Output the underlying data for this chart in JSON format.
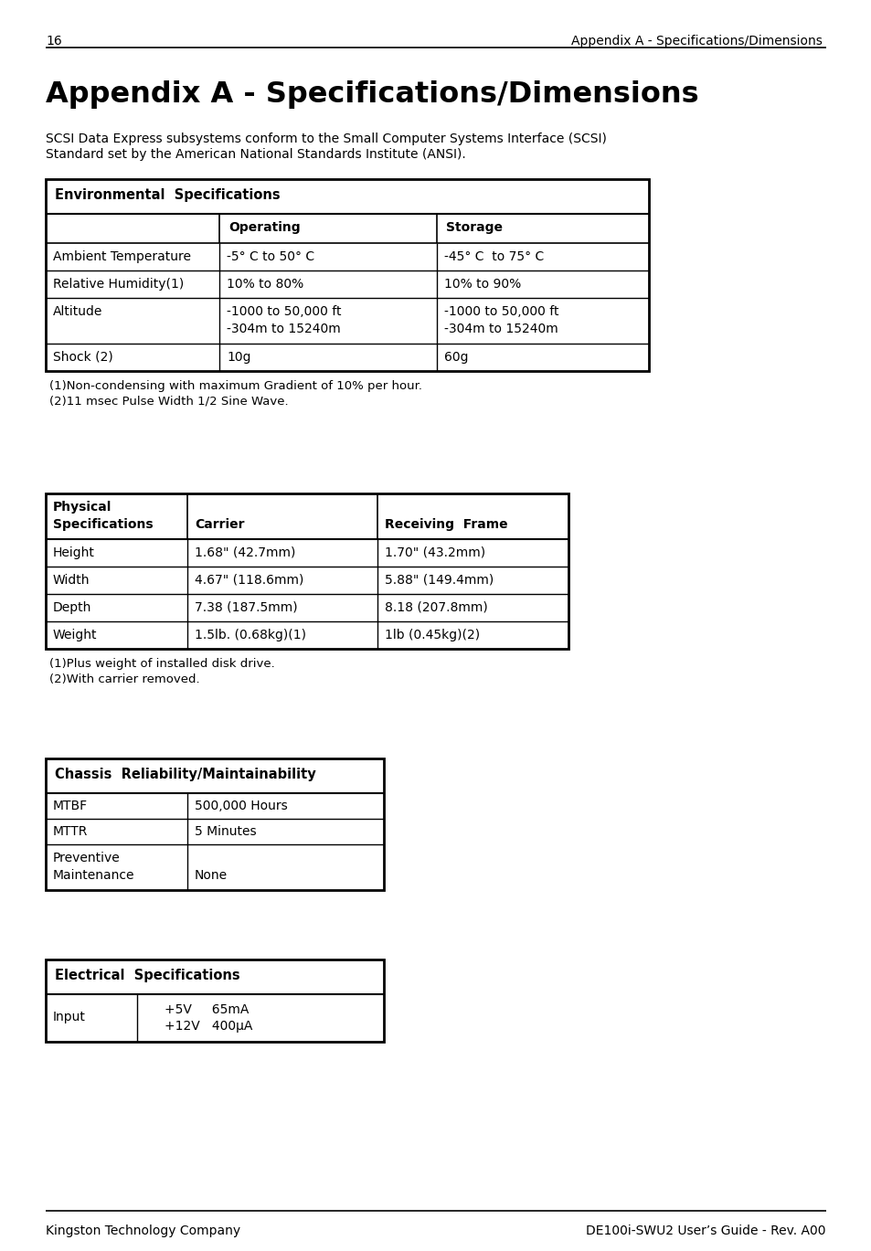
{
  "page_number": "16",
  "header_right": "Appendix A - Specifications/Dimensions",
  "title": "Appendix A - Specifications/Dimensions",
  "intro_line1": "SCSI Data Express subsystems conform to the Small Computer Systems Interface (SCSI)",
  "intro_line2": "Standard set by the American National Standards Institute (ANSI).",
  "footer_left": "Kingston Technology Company",
  "footer_right": "DE100i-SWU2 User’s Guide - Rev. A00",
  "env_header": "Environmental  Specifications",
  "env_col2": "Operating",
  "env_col3": "Storage",
  "env_rows": [
    [
      "Ambient Temperature",
      "-5° C to 50° C",
      "-45° C  to 75° C"
    ],
    [
      "Relative Humidity(1)",
      "10% to 80%",
      "10% to 90%"
    ],
    [
      "Altitude",
      "-1000 to 50,000 ft\n-304m to 15240m",
      "-1000 to 50,000 ft\n-304m to 15240m"
    ],
    [
      "Shock (2)",
      "10g",
      "60g"
    ]
  ],
  "env_fn1": "(1)Non-condensing with maximum Gradient of 10% per hour.",
  "env_fn2": "(2)11 msec Pulse Width 1/2 Sine Wave.",
  "phys_col1a": "Physical",
  "phys_col1b": "Specifications",
  "phys_col2": "Carrier",
  "phys_col3": "Receiving  Frame",
  "phys_rows": [
    [
      "Height",
      "1.68\" (42.7mm)",
      "1.70\" (43.2mm)"
    ],
    [
      "Width",
      "4.67\" (118.6mm)",
      "5.88\" (149.4mm)"
    ],
    [
      "Depth",
      "7.38 (187.5mm)",
      "8.18 (207.8mm)"
    ],
    [
      "Weight",
      "1.5lb. (0.68kg)(1)",
      "1lb (0.45kg)(2)"
    ]
  ],
  "phys_fn1": "(1)Plus weight of installed disk drive.",
  "phys_fn2": "(2)With carrier removed.",
  "chassis_header": "Chassis  Reliability/Maintainability",
  "chassis_rows": [
    [
      "MTBF",
      "500,000 Hours"
    ],
    [
      "MTTR",
      "5 Minutes"
    ],
    [
      "Preventive\nMaintenance",
      "None"
    ]
  ],
  "elec_header": "Electrical  Specifications",
  "elec_input_label": "Input",
  "elec_line1": "+5V     65mA",
  "elec_line2": "+12V   400μA",
  "bg": "#ffffff",
  "fg": "#000000"
}
